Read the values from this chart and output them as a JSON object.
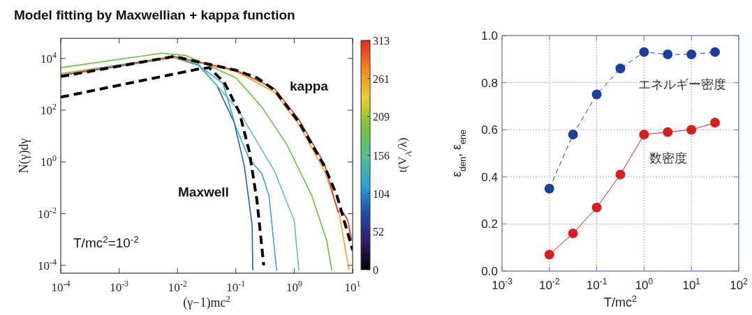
{
  "chart_data": [
    {
      "type": "line",
      "title": "Model fitting by Maxwellian + kappa function",
      "xlabel": "(γ−1)mc$^{2}$",
      "ylabel": "N(γ)dγ",
      "clabel": "t(V$_{A}$/λ)",
      "clim": [
        0,
        313
      ],
      "cticks": [
        0,
        52,
        104,
        156,
        209,
        261,
        313
      ],
      "log": "xy",
      "xlim": [
        0.0001,
        10
      ],
      "ylim": [
        5e-05,
        60000
      ],
      "xticks": [
        {
          "value": 0.0001,
          "label": "10$^{-4}$"
        },
        {
          "value": 0.001,
          "label": "10$^{-3}$"
        },
        {
          "value": 0.01,
          "label": "10$^{-2}$"
        },
        {
          "value": 0.1,
          "label": "10$^{-1}$"
        },
        {
          "value": 1,
          "label": "10$^{0}$"
        },
        {
          "value": 10,
          "label": "10$^{1}$"
        }
      ],
      "yticks": [
        {
          "value": 0.0001,
          "label": "10$^{-4}$"
        },
        {
          "value": 0.01,
          "label": "10$^{-2}$"
        },
        {
          "value": 1,
          "label": "10$^{0}$"
        },
        {
          "value": 100,
          "label": "10$^{2}$"
        },
        {
          "value": 10000,
          "label": "10$^{4}$"
        }
      ],
      "annotations": [
        "kappa",
        "Maxwell",
        "T/mc$^{2}$=10$^{-2}$"
      ],
      "series": [
        {
          "color": "#1f5fb0",
          "x": [
            0.0001,
            0.0087,
            0.023,
            0.047,
            0.093,
            0.14,
            0.19,
            0.195
          ],
          "values": [
            2200,
            11000,
            5400,
            930,
            35,
            0.68,
            0.0035,
            6.3e-05
          ]
        },
        {
          "color": "#3aa0d8",
          "x": [
            0.0001,
            0.0087,
            0.023,
            0.06,
            0.1,
            0.17,
            0.28,
            0.37,
            0.5
          ],
          "values": [
            2200,
            11000,
            5400,
            1100,
            22,
            1.3,
            0.35,
            0.049,
            6.3e-05
          ]
        },
        {
          "color": "#5cc0b0",
          "x": [
            0.0001,
            0.0087,
            0.023,
            0.11,
            0.46,
            1.0,
            1.2
          ],
          "values": [
            2600,
            12000,
            6000,
            100,
            0.44,
            0.0054,
            6.3e-05
          ]
        },
        {
          "color": "#6cbf3c",
          "x": [
            0.0001,
            0.0054,
            0.014,
            0.1,
            0.28,
            0.74,
            2.0,
            3.6,
            4.4
          ],
          "values": [
            4400,
            16000,
            13000,
            1800,
            130,
            4.9,
            0.049,
            0.00093,
            6.3e-05
          ]
        },
        {
          "color": "#f5a020",
          "x": [
            0.0001,
            0.0087,
            0.1,
            0.46,
            1.2,
            3.3,
            5.9,
            8.7
          ],
          "values": [
            2500,
            11000,
            3200,
            490,
            28,
            0.44,
            0.01,
            6.3e-05
          ]
        },
        {
          "color": "#e0302a",
          "x": [
            0.0001,
            0.0087,
            0.1,
            0.46,
            1.2,
            3.3,
            5.6,
            6.6,
            8.3,
            9.6
          ],
          "values": [
            2200,
            12000,
            3500,
            680,
            44,
            0.83,
            0.012,
            0.013,
            0.0054,
            0.00093
          ]
        },
        {
          "color": "#000000",
          "line_style": "dashed",
          "x": [
            0.0001,
            0.023,
            0.035,
            0.063,
            0.115,
            0.17,
            0.23,
            0.3
          ],
          "values": [
            320,
            3900,
            4400,
            1200,
            83,
            2.5,
            0.032,
            0.0001
          ]
        },
        {
          "color": "#000000",
          "line_style": "dashed",
          "x": [
            0.0001,
            0.0087,
            0.1,
            0.23,
            0.46,
            1.2,
            3.3,
            5.4,
            10
          ],
          "values": [
            2000,
            12000,
            3500,
            1800,
            600,
            35,
            0.68,
            0.049,
            0.00039
          ]
        }
      ]
    },
    {
      "type": "line",
      "xlabel": "T/mc$^{2}$",
      "ylabel": "ε$_{den}$, ε$_{ene}$",
      "log": "x",
      "grid": true,
      "marker": "circle",
      "xlim": [
        0.001,
        100
      ],
      "ylim": [
        0,
        1
      ],
      "xticks": [
        {
          "value": 0.001,
          "label": "10$^{-3}$"
        },
        {
          "value": 0.01,
          "label": "10$^{-2}$"
        },
        {
          "value": 0.1,
          "label": "10$^{-1}$"
        },
        {
          "value": 1,
          "label": "10$^{0}$"
        },
        {
          "value": 10,
          "label": "10$^{1}$"
        },
        {
          "value": 100,
          "label": "10$^{2}$"
        }
      ],
      "yticks": [
        {
          "value": 0,
          "label": "0.0"
        },
        {
          "value": 0.2,
          "label": "0.2"
        },
        {
          "value": 0.4,
          "label": "0.4"
        },
        {
          "value": 0.6,
          "label": "0.6"
        },
        {
          "value": 0.8,
          "label": "0.8"
        },
        {
          "value": 1,
          "label": "1.0"
        }
      ],
      "series": [
        {
          "name": "エネルギー密度",
          "color": "#1a3f9c",
          "line_style": "dashed",
          "x": [
            0.01,
            0.0316,
            0.1,
            0.316,
            1,
            3.16,
            10,
            31.6
          ],
          "values": [
            0.35,
            0.58,
            0.75,
            0.86,
            0.93,
            0.92,
            0.92,
            0.93
          ]
        },
        {
          "name": "数密度",
          "color": "#d42020",
          "line_style": "solid",
          "x": [
            0.01,
            0.0316,
            0.1,
            0.316,
            1,
            3.16,
            10,
            31.6
          ],
          "values": [
            0.07,
            0.16,
            0.27,
            0.41,
            0.58,
            0.59,
            0.6,
            0.63
          ]
        }
      ]
    }
  ]
}
